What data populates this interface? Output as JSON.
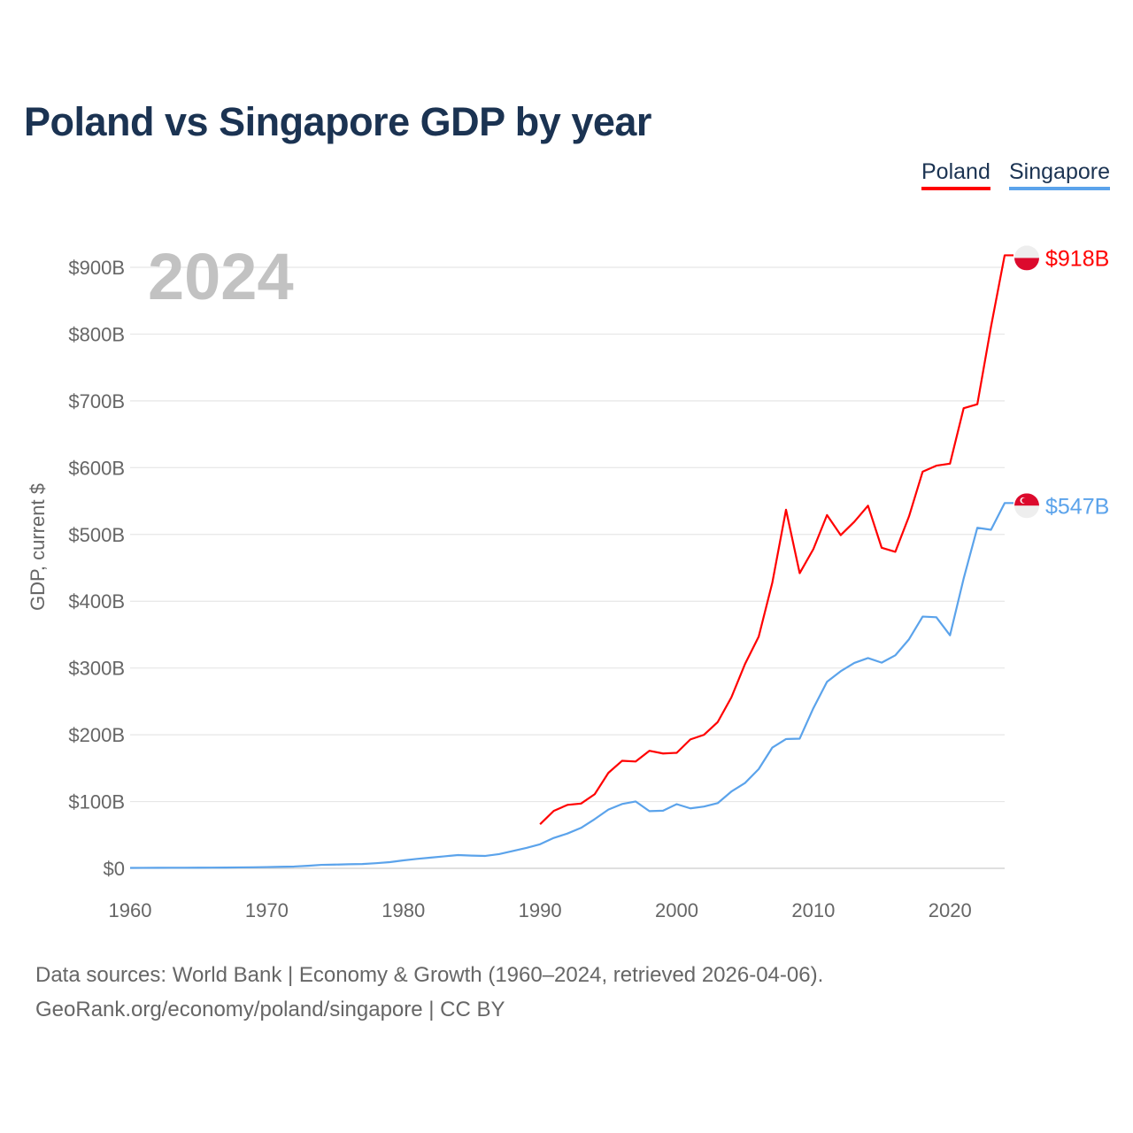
{
  "chart_data": {
    "type": "line",
    "title": "Poland vs Singapore GDP by year",
    "ylabel": "GDP, current $",
    "xlabel": "",
    "year_watermark": "2024",
    "xlim": [
      1960,
      2024
    ],
    "ylim": [
      0,
      900
    ],
    "x_ticks": [
      1960,
      1970,
      1980,
      1990,
      2000,
      2010,
      2020
    ],
    "x_tick_labels": [
      "1960",
      "1970",
      "1980",
      "1990",
      "2000",
      "2010",
      "2020"
    ],
    "y_ticks": [
      0,
      100,
      200,
      300,
      400,
      500,
      600,
      700,
      800,
      900
    ],
    "y_tick_labels": [
      "$0",
      "$100B",
      "$200B",
      "$300B",
      "$400B",
      "$500B",
      "$600B",
      "$700B",
      "$800B",
      "$900B"
    ],
    "grid": true,
    "legend_position": "top-right",
    "series": [
      {
        "name": "Poland",
        "color": "#ff0000",
        "start_year": 1990,
        "values": [
          66,
          86,
          95,
          97,
          111,
          143,
          161,
          160,
          176,
          172,
          173,
          193,
          200,
          219,
          256,
          306,
          347,
          428,
          537,
          442,
          478,
          529,
          499,
          519,
          543,
          480,
          474,
          527,
          594,
          603,
          606,
          689,
          695,
          811,
          918
        ],
        "end_label": "$918B",
        "flag": "poland-flag"
      },
      {
        "name": "Singapore",
        "color": "#5ba3eb",
        "start_year": 1960,
        "values": [
          0.7,
          0.76,
          0.83,
          0.92,
          0.89,
          0.97,
          1.1,
          1.2,
          1.4,
          1.6,
          1.9,
          2.3,
          2.7,
          3.8,
          5.2,
          5.6,
          6.1,
          6.5,
          7.7,
          9.3,
          11.9,
          14.2,
          16.1,
          18.0,
          19.9,
          19.1,
          18.6,
          21.3,
          25.9,
          30.6,
          36.1,
          45.5,
          52.1,
          60.6,
          73.7,
          88.0,
          96.3,
          100.1,
          85.7,
          86.3,
          96.1,
          89.8,
          92.5,
          97.6,
          115,
          127.8,
          148.6,
          180.9,
          193.6,
          194.2,
          239.8,
          279.4,
          295.1,
          307.6,
          314.9,
          308,
          319,
          343,
          377,
          376,
          349,
          434,
          510,
          507,
          547
        ],
        "end_label": "$547B",
        "flag": "singapore-flag"
      }
    ]
  },
  "footer": {
    "line1": "Data sources: World Bank | Economy & Growth (1960–2024, retrieved 2026-04-06).",
    "line2": "GeoRank.org/economy/poland/singapore | CC BY"
  }
}
